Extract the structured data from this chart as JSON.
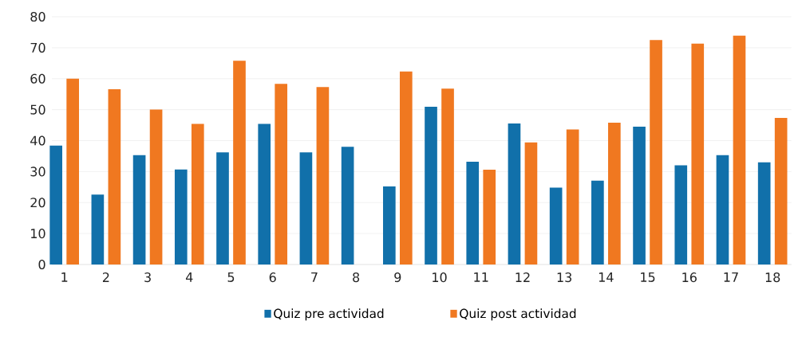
{
  "chart_data": {
    "type": "bar",
    "categories": [
      "1",
      "2",
      "3",
      "4",
      "5",
      "6",
      "7",
      "8",
      "9",
      "10",
      "11",
      "12",
      "13",
      "14",
      "15",
      "16",
      "17",
      "18"
    ],
    "series": [
      {
        "name": "Quiz pre actividad",
        "color": "#1170aa",
        "values": [
          38.4,
          22.6,
          35.3,
          30.7,
          36.2,
          45.4,
          36.2,
          38.0,
          25.2,
          50.9,
          33.2,
          45.5,
          24.8,
          27.1,
          44.5,
          32.0,
          35.3,
          33.0
        ]
      },
      {
        "name": "Quiz post actividad",
        "color": "#f07820",
        "values": [
          60,
          56.6,
          50,
          45.4,
          65.8,
          58.3,
          57.3,
          null,
          62.3,
          56.8,
          30.6,
          39.4,
          43.6,
          45.8,
          72.5,
          71.3,
          73.9,
          47.3
        ]
      }
    ],
    "ylim": [
      0,
      80
    ],
    "yticks": [
      0,
      10,
      20,
      30,
      40,
      50,
      60,
      70,
      80
    ],
    "grid": "y",
    "legend": "bottom"
  }
}
